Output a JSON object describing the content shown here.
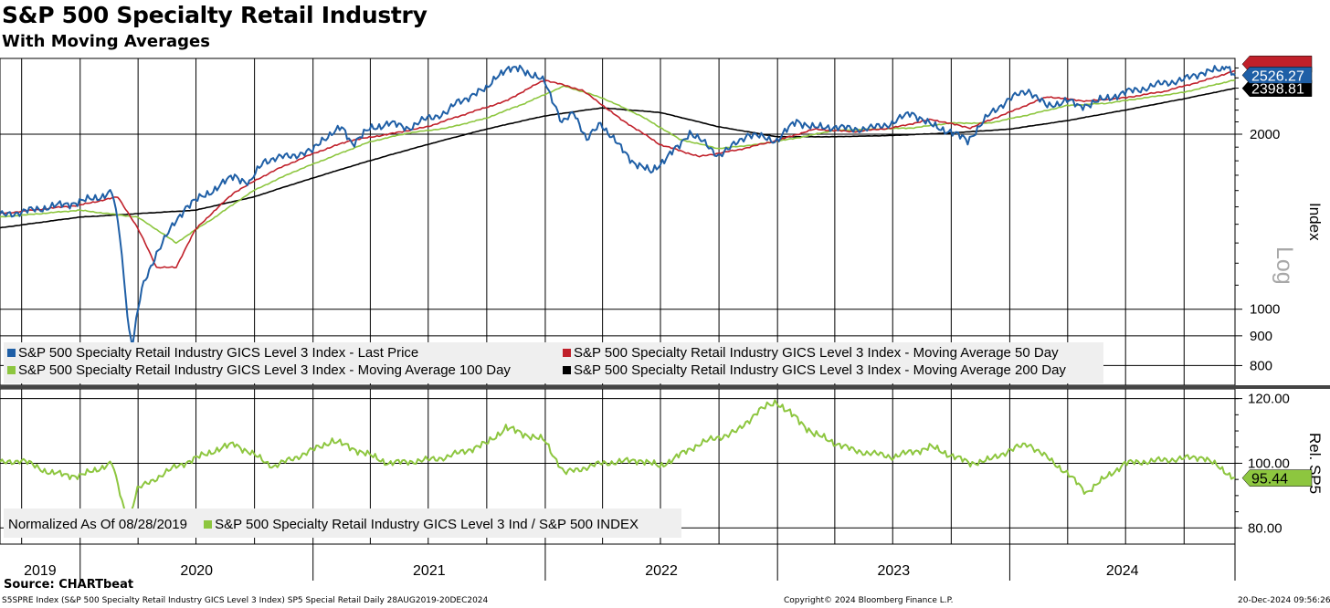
{
  "title": "S&P 500 Specialty Retail Industry",
  "subtitle": "With Moving Averages",
  "chart_data": [
    {
      "type": "line",
      "ylabel": "Index",
      "scale": "Log",
      "yscale": "log",
      "ylim": [
        740,
        2700
      ],
      "y_ticks": [
        800,
        900,
        1000,
        2000
      ],
      "y_tick_labels": [
        "800",
        "900",
        "1000",
        "2000"
      ],
      "x_range": [
        "2019-08-28",
        "2024-12-20"
      ],
      "x_ticks": [
        "2019",
        "2020",
        "2021",
        "2022",
        "2023",
        "2024"
      ],
      "grid": true,
      "legend_position": "bottom-left",
      "value_labels": [
        "2526.27",
        "2398.81"
      ],
      "series": [
        {
          "name": "S&P 500 Specialty Retail Industry GICS Level 3 Index - Last Price",
          "color": "#1f5fa6",
          "x": [
            "2019-08-28",
            "2019-10-01",
            "2019-11-15",
            "2019-12-31",
            "2020-01-31",
            "2020-02-20",
            "2020-03-03",
            "2020-03-10",
            "2020-03-18",
            "2020-03-23",
            "2020-04-07",
            "2020-04-30",
            "2020-05-31",
            "2020-06-15",
            "2020-07-31",
            "2020-08-31",
            "2020-09-23",
            "2020-10-15",
            "2020-11-30",
            "2020-12-31",
            "2021-01-15",
            "2021-02-15",
            "2021-03-04",
            "2021-03-31",
            "2021-04-30",
            "2021-05-31",
            "2021-06-30",
            "2021-07-31",
            "2021-08-15",
            "2021-09-30",
            "2021-10-15",
            "2021-11-22",
            "2021-12-10",
            "2021-12-31",
            "2022-01-27",
            "2022-02-15",
            "2022-03-07",
            "2022-03-29",
            "2022-04-30",
            "2022-05-20",
            "2022-06-16",
            "2022-07-31",
            "2022-08-16",
            "2022-09-30",
            "2022-10-15",
            "2022-11-15",
            "2022-12-31",
            "2023-01-31",
            "2023-02-28",
            "2023-03-31",
            "2023-04-30",
            "2023-05-31",
            "2023-06-30",
            "2023-07-31",
            "2023-08-31",
            "2023-09-30",
            "2023-10-27",
            "2023-11-30",
            "2023-12-31",
            "2024-01-31",
            "2024-02-29",
            "2024-03-31",
            "2024-04-19",
            "2024-05-31",
            "2024-06-30",
            "2024-07-31",
            "2024-08-31",
            "2024-09-30",
            "2024-10-31",
            "2024-11-30",
            "2024-12-06",
            "2024-12-20"
          ],
          "values": [
            1450,
            1470,
            1500,
            1530,
            1560,
            1590,
            1350,
            1120,
            920,
            870,
            1080,
            1250,
            1420,
            1500,
            1610,
            1700,
            1640,
            1800,
            1840,
            1870,
            1960,
            2050,
            1930,
            2040,
            2090,
            2050,
            2130,
            2180,
            2270,
            2390,
            2520,
            2620,
            2510,
            2480,
            2080,
            2190,
            1950,
            2090,
            1890,
            1790,
            1720,
            1910,
            2020,
            1840,
            1880,
            2000,
            1950,
            2110,
            2050,
            2060,
            2040,
            2050,
            2090,
            2180,
            2070,
            2020,
            1950,
            2160,
            2300,
            2380,
            2230,
            2290,
            2230,
            2300,
            2360,
            2400,
            2450,
            2480,
            2560,
            2580,
            2640,
            2526.27
          ]
        },
        {
          "name": "S&P 500 Specialty Retail Industry GICS Level 3 Index - Moving Average 50 Day",
          "color": "#c0202a",
          "x": [
            "2019-08-28",
            "2019-12-31",
            "2020-02-29",
            "2020-03-31",
            "2020-04-30",
            "2020-05-31",
            "2020-06-30",
            "2020-08-31",
            "2020-10-31",
            "2020-12-31",
            "2021-02-28",
            "2021-04-30",
            "2021-06-30",
            "2021-08-31",
            "2021-10-31",
            "2021-12-31",
            "2022-02-28",
            "2022-04-30",
            "2022-06-30",
            "2022-08-31",
            "2022-10-31",
            "2022-12-31",
            "2023-02-28",
            "2023-04-30",
            "2023-06-30",
            "2023-08-31",
            "2023-10-31",
            "2023-12-31",
            "2024-02-29",
            "2024-04-30",
            "2024-06-30",
            "2024-08-31",
            "2024-10-31",
            "2024-12-20"
          ],
          "values": [
            1460,
            1510,
            1560,
            1380,
            1180,
            1180,
            1370,
            1590,
            1730,
            1850,
            1950,
            2000,
            2060,
            2170,
            2280,
            2480,
            2380,
            2120,
            1920,
            1830,
            1880,
            1950,
            2040,
            2020,
            2050,
            2120,
            2050,
            2180,
            2320,
            2280,
            2310,
            2370,
            2470,
            2570
          ]
        },
        {
          "name": "S&P 500 Specialty Retail Industry GICS Level 3 Index - Moving Average 100 Day",
          "color": "#8dc63f",
          "x": [
            "2019-08-28",
            "2019-12-31",
            "2020-03-31",
            "2020-05-31",
            "2020-07-31",
            "2020-09-30",
            "2020-11-30",
            "2021-01-31",
            "2021-03-31",
            "2021-05-31",
            "2021-07-31",
            "2021-09-30",
            "2021-11-30",
            "2022-01-31",
            "2022-03-31",
            "2022-05-31",
            "2022-07-31",
            "2022-09-30",
            "2022-11-30",
            "2023-01-31",
            "2023-03-31",
            "2023-05-31",
            "2023-07-31",
            "2023-09-30",
            "2023-11-30",
            "2024-01-31",
            "2024-03-31",
            "2024-05-31",
            "2024-07-31",
            "2024-09-30",
            "2024-11-30",
            "2024-12-20"
          ],
          "values": [
            1440,
            1480,
            1440,
            1300,
            1440,
            1600,
            1720,
            1830,
            1940,
            2010,
            2050,
            2130,
            2260,
            2420,
            2310,
            2150,
            1960,
            1890,
            1920,
            1970,
            2030,
            2040,
            2050,
            2090,
            2090,
            2160,
            2240,
            2260,
            2310,
            2360,
            2450,
            2480
          ]
        },
        {
          "name": "S&P 500 Specialty Retail Industry GICS Level 3 Index - Moving Average 200 Day",
          "color": "#000000",
          "x": [
            "2019-08-28",
            "2019-12-31",
            "2020-03-31",
            "2020-06-30",
            "2020-09-30",
            "2020-12-31",
            "2021-03-31",
            "2021-06-30",
            "2021-09-30",
            "2021-12-31",
            "2022-03-31",
            "2022-06-30",
            "2022-09-30",
            "2022-12-31",
            "2023-03-31",
            "2023-06-30",
            "2023-09-30",
            "2023-12-31",
            "2024-03-31",
            "2024-06-30",
            "2024-09-30",
            "2024-12-20"
          ],
          "values": [
            1380,
            1440,
            1460,
            1480,
            1560,
            1680,
            1800,
            1920,
            2040,
            2150,
            2220,
            2180,
            2060,
            1980,
            1980,
            1990,
            2010,
            2040,
            2110,
            2200,
            2300,
            2398.81
          ]
        }
      ]
    },
    {
      "type": "line",
      "ylabel": "Rel. SP5",
      "ylim": [
        75,
        123
      ],
      "y_ticks": [
        80,
        100,
        120
      ],
      "y_tick_labels": [
        "80.00",
        "100.00",
        "120.00"
      ],
      "x_range": [
        "2019-08-28",
        "2024-12-20"
      ],
      "x_ticks": [
        "2019",
        "2020",
        "2021",
        "2022",
        "2023",
        "2024"
      ],
      "grid": true,
      "legend_position": "bottom-left",
      "legend_note": "Normalized As Of 08/28/2019",
      "value_labels": [
        "95.44"
      ],
      "series": [
        {
          "name": "S&P 500 Specialty Retail Industry GICS Level 3 Ind / S&P 500 INDEX",
          "color": "#8dc63f",
          "x": [
            "2019-08-28",
            "2019-10-01",
            "2019-11-15",
            "2019-12-31",
            "2020-02-20",
            "2020-03-10",
            "2020-03-18",
            "2020-03-31",
            "2020-05-31",
            "2020-07-31",
            "2020-08-31",
            "2020-10-31",
            "2020-12-31",
            "2021-01-31",
            "2021-02-28",
            "2021-04-30",
            "2021-06-30",
            "2021-07-31",
            "2021-09-30",
            "2021-10-31",
            "2021-11-30",
            "2021-12-31",
            "2022-01-31",
            "2022-03-31",
            "2022-05-31",
            "2022-06-30",
            "2022-08-31",
            "2022-10-31",
            "2022-11-30",
            "2022-12-31",
            "2023-02-28",
            "2023-04-30",
            "2023-06-30",
            "2023-08-31",
            "2023-10-31",
            "2023-11-30",
            "2023-12-31",
            "2024-01-31",
            "2024-03-31",
            "2024-04-30",
            "2024-06-30",
            "2024-08-31",
            "2024-10-31",
            "2024-11-30",
            "2024-12-20"
          ],
          "values": [
            100,
            101,
            97,
            96,
            100,
            86,
            83,
            92,
            99,
            104,
            106,
            99,
            104,
            107,
            105,
            100,
            101,
            102,
            106,
            111,
            109,
            107,
            97,
            100,
            101,
            99,
            106,
            110,
            116,
            119,
            109,
            104,
            102,
            105,
            100,
            101,
            104,
            106,
            97,
            91,
            100,
            101,
            102,
            98,
            95.44
          ]
        }
      ]
    }
  ],
  "legend": {
    "upper": [
      {
        "label": "S&P 500 Specialty Retail Industry GICS Level 3 Index - Last Price",
        "color": "#1f5fa6"
      },
      {
        "label": "S&P 500 Specialty Retail Industry GICS Level 3 Index - Moving Average 50 Day",
        "color": "#c0202a"
      },
      {
        "label": "S&P 500 Specialty Retail Industry GICS Level 3 Index - Moving Average 100 Day",
        "color": "#8dc63f"
      },
      {
        "label": "S&P 500 Specialty Retail Industry GICS Level 3 Index - Moving Average 200 Day",
        "color": "#000000"
      }
    ],
    "lower_note": "Normalized As Of 08/28/2019",
    "lower": [
      {
        "label": "S&P 500 Specialty Retail Industry GICS Level 3 Ind / S&P 500 INDEX",
        "color": "#8dc63f"
      }
    ]
  },
  "footer": {
    "source": "Source: CHARTbeat",
    "description": "S5SPRE Index (S&P 500 Specialty Retail Industry GICS Level 3 Index) SP5 Special Retail  Daily 28AUG2019-20DEC2024",
    "copyright": "Copyright© 2024 Bloomberg Finance L.P.",
    "timestamp": "20-Dec-2024 09:56:26"
  }
}
